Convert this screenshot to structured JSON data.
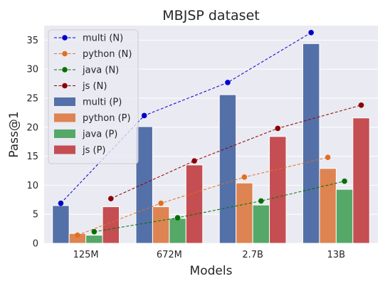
{
  "chart_data": {
    "type": "bar",
    "title": "MBJSP dataset",
    "xlabel": "Models",
    "ylabel": "Pass@1",
    "categories": [
      "125M",
      "672M",
      "2.7B",
      "13B"
    ],
    "ylim": [
      0,
      37.5
    ],
    "yticks": [
      0,
      5,
      10,
      15,
      20,
      25,
      30,
      35
    ],
    "grid": true,
    "legend_position": "top-left",
    "bar_series": [
      {
        "name": "multi (P)",
        "color": "#5470a8",
        "values": [
          6.5,
          20.1,
          25.6,
          34.4
        ]
      },
      {
        "name": "python (P)",
        "color": "#dd8452",
        "values": [
          1.7,
          6.3,
          10.4,
          12.9
        ]
      },
      {
        "name": "java (P)",
        "color": "#55a868",
        "values": [
          1.4,
          4.3,
          6.6,
          9.3
        ]
      },
      {
        "name": "js (P)",
        "color": "#c44e52",
        "values": [
          6.3,
          13.5,
          18.4,
          21.6
        ]
      }
    ],
    "line_series": [
      {
        "name": "multi (N)",
        "color": "#0000cc",
        "values": [
          6.9,
          22.0,
          27.7,
          36.3
        ]
      },
      {
        "name": "python (N)",
        "color": "#e07020",
        "values": [
          1.4,
          6.9,
          11.4,
          14.8
        ]
      },
      {
        "name": "java (N)",
        "color": "#007000",
        "values": [
          2.0,
          4.4,
          7.3,
          10.7
        ]
      },
      {
        "name": "js (N)",
        "color": "#8b0000",
        "values": [
          7.7,
          14.2,
          19.8,
          23.8
        ]
      }
    ]
  }
}
